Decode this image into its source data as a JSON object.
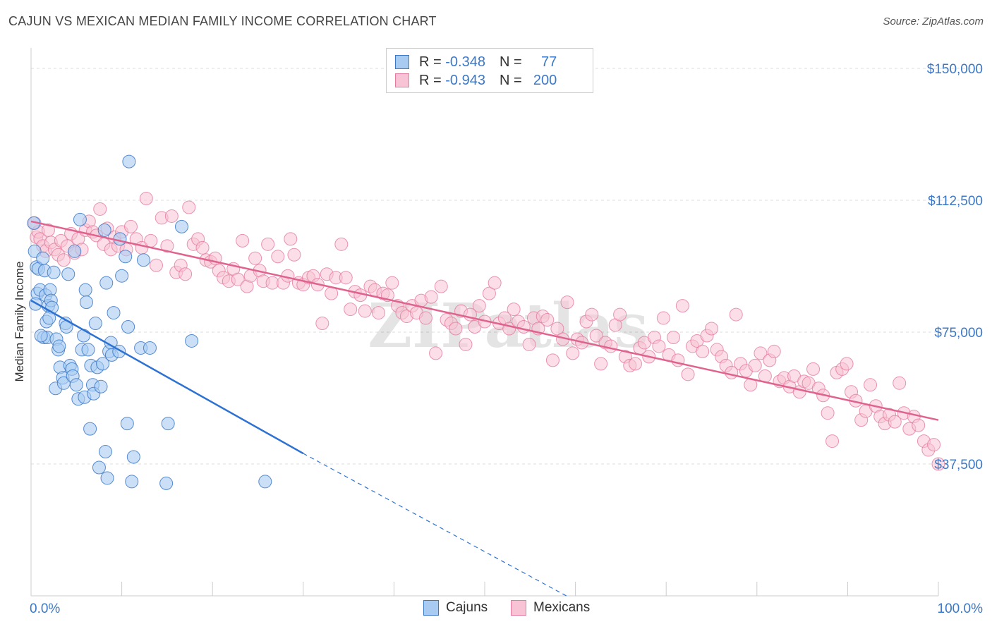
{
  "title": "CAJUN VS MEXICAN MEDIAN FAMILY INCOME CORRELATION CHART",
  "source": "Source: ZipAtlas.com",
  "watermark": "ZIPatlas",
  "colors": {
    "cajun_fill": "#a9cbf2",
    "cajun_stroke": "#3b78c8",
    "cajun_line": "#2d72d2",
    "mexican_fill": "#f8c3d4",
    "mexican_stroke": "#e57a9e",
    "mexican_line": "#e0628e",
    "grid": "#dddddd",
    "tick_label": "#3b78c8"
  },
  "legend": {
    "rows": [
      {
        "r_label": "R = ",
        "r_value": "-0.348",
        "n_label": "N = ",
        "n_value": "77"
      },
      {
        "r_label": "R = ",
        "r_value": "-0.943",
        "n_label": "N = ",
        "n_value": "200"
      }
    ]
  },
  "bottom_legend": [
    "Cajuns",
    "Mexicans"
  ],
  "chart_data": {
    "type": "scatter",
    "title": "CAJUN VS MEXICAN MEDIAN FAMILY INCOME CORRELATION CHART",
    "xlabel": "",
    "ylabel": "Median Family Income",
    "xlim": [
      0,
      100
    ],
    "ylim": [
      0,
      150000
    ],
    "x_tick_labels": [
      "0.0%",
      "100.0%"
    ],
    "y_ticks": [
      37500,
      75000,
      112500,
      150000
    ],
    "y_tick_labels": [
      "$37,500",
      "$75,000",
      "$112,500",
      "$150,000"
    ],
    "grid": true,
    "legend_position": "top-center",
    "series": [
      {
        "name": "Cajuns",
        "r": -0.348,
        "n": 77,
        "trend": {
          "x": [
            0,
            30
          ],
          "y": [
            84000,
            40500
          ],
          "dashed_to": [
            59,
            0
          ]
        },
        "points": [
          [
            0.3,
            106000
          ],
          [
            0.4,
            98000
          ],
          [
            0.6,
            93500
          ],
          [
            0.7,
            86000
          ],
          [
            0.8,
            93000
          ],
          [
            1.0,
            87000
          ],
          [
            1.3,
            96000
          ],
          [
            1.4,
            73500
          ],
          [
            1.5,
            92500
          ],
          [
            1.6,
            85500
          ],
          [
            1.7,
            78000
          ],
          [
            1.8,
            73500
          ],
          [
            1.9,
            82500
          ],
          [
            2.1,
            87000
          ],
          [
            2.2,
            84000
          ],
          [
            2.3,
            82000
          ],
          [
            2.5,
            92000
          ],
          [
            2.7,
            59000
          ],
          [
            2.8,
            73000
          ],
          [
            3.0,
            70000
          ],
          [
            3.1,
            71000
          ],
          [
            3.2,
            65000
          ],
          [
            3.5,
            62000
          ],
          [
            3.6,
            60500
          ],
          [
            3.8,
            77500
          ],
          [
            3.9,
            76500
          ],
          [
            4.1,
            91500
          ],
          [
            4.3,
            65500
          ],
          [
            4.5,
            64500
          ],
          [
            4.6,
            62500
          ],
          [
            4.8,
            98000
          ],
          [
            5.0,
            60000
          ],
          [
            5.2,
            56000
          ],
          [
            5.4,
            107000
          ],
          [
            5.6,
            70000
          ],
          [
            5.8,
            74000
          ],
          [
            5.9,
            56500
          ],
          [
            6.0,
            87000
          ],
          [
            6.1,
            83500
          ],
          [
            6.3,
            70000
          ],
          [
            6.5,
            47500
          ],
          [
            6.6,
            65500
          ],
          [
            6.8,
            60000
          ],
          [
            6.9,
            57500
          ],
          [
            7.1,
            77500
          ],
          [
            7.3,
            65000
          ],
          [
            7.5,
            36500
          ],
          [
            7.7,
            59500
          ],
          [
            7.9,
            66000
          ],
          [
            8.1,
            104000
          ],
          [
            8.2,
            41000
          ],
          [
            8.3,
            89000
          ],
          [
            8.4,
            33500
          ],
          [
            8.6,
            69500
          ],
          [
            8.8,
            72000
          ],
          [
            8.9,
            68500
          ],
          [
            9.1,
            80500
          ],
          [
            9.7,
            69500
          ],
          [
            9.8,
            101500
          ],
          [
            10.0,
            91000
          ],
          [
            10.4,
            96500
          ],
          [
            10.6,
            49000
          ],
          [
            10.7,
            76500
          ],
          [
            10.8,
            123500
          ],
          [
            11.1,
            32500
          ],
          [
            11.3,
            39500
          ],
          [
            12.1,
            70500
          ],
          [
            12.4,
            95500
          ],
          [
            13.1,
            70500
          ],
          [
            14.9,
            32000
          ],
          [
            15.1,
            49000
          ],
          [
            16.6,
            105000
          ],
          [
            17.7,
            72500
          ],
          [
            25.8,
            32500
          ],
          [
            0.5,
            83000
          ],
          [
            1.1,
            74000
          ],
          [
            2.0,
            79000
          ]
        ]
      },
      {
        "name": "Mexicans",
        "r": -0.943,
        "n": 200,
        "trend": {
          "x": [
            0,
            100
          ],
          "y": [
            106500,
            50000
          ]
        },
        "points": [
          [
            0.4,
            106000
          ],
          [
            0.6,
            102000
          ],
          [
            0.8,
            103500
          ],
          [
            1.0,
            101500
          ],
          [
            1.3,
            99500
          ],
          [
            1.6,
            98000
          ],
          [
            1.9,
            104000
          ],
          [
            2.2,
            100500
          ],
          [
            2.6,
            98500
          ],
          [
            3.0,
            97000
          ],
          [
            3.3,
            101000
          ],
          [
            3.6,
            95500
          ],
          [
            4.0,
            99500
          ],
          [
            4.4,
            103000
          ],
          [
            4.8,
            97500
          ],
          [
            5.2,
            101500
          ],
          [
            5.6,
            98500
          ],
          [
            6.0,
            104000
          ],
          [
            6.4,
            106500
          ],
          [
            6.8,
            103500
          ],
          [
            7.2,
            102500
          ],
          [
            7.6,
            110000
          ],
          [
            8.0,
            100000
          ],
          [
            8.4,
            104500
          ],
          [
            8.8,
            98500
          ],
          [
            9.2,
            102000
          ],
          [
            9.6,
            99500
          ],
          [
            10.0,
            103500
          ],
          [
            10.5,
            98500
          ],
          [
            11.0,
            105000
          ],
          [
            11.6,
            101500
          ],
          [
            12.2,
            99000
          ],
          [
            12.7,
            113000
          ],
          [
            13.2,
            101000
          ],
          [
            13.8,
            94000
          ],
          [
            14.4,
            107500
          ],
          [
            15.0,
            99500
          ],
          [
            15.5,
            108000
          ],
          [
            16.0,
            92000
          ],
          [
            16.5,
            94000
          ],
          [
            17.0,
            91500
          ],
          [
            17.4,
            110500
          ],
          [
            17.9,
            100000
          ],
          [
            18.4,
            101500
          ],
          [
            18.9,
            99000
          ],
          [
            19.3,
            95500
          ],
          [
            19.8,
            95000
          ],
          [
            20.3,
            96000
          ],
          [
            20.7,
            92500
          ],
          [
            21.2,
            90500
          ],
          [
            21.8,
            89500
          ],
          [
            22.3,
            93000
          ],
          [
            22.8,
            90000
          ],
          [
            23.3,
            101000
          ],
          [
            23.8,
            88000
          ],
          [
            24.2,
            91000
          ],
          [
            24.7,
            96000
          ],
          [
            25.2,
            92500
          ],
          [
            25.6,
            89500
          ],
          [
            26.1,
            100000
          ],
          [
            26.6,
            89000
          ],
          [
            27.2,
            96500
          ],
          [
            27.8,
            89000
          ],
          [
            28.3,
            91000
          ],
          [
            28.6,
            101500
          ],
          [
            29.0,
            97000
          ],
          [
            29.5,
            89000
          ],
          [
            30.0,
            88500
          ],
          [
            30.6,
            90500
          ],
          [
            31.1,
            91000
          ],
          [
            31.6,
            88500
          ],
          [
            32.1,
            77500
          ],
          [
            32.6,
            91500
          ],
          [
            33.1,
            86000
          ],
          [
            33.6,
            90500
          ],
          [
            34.2,
            100000
          ],
          [
            34.7,
            90500
          ],
          [
            35.2,
            81500
          ],
          [
            35.7,
            86500
          ],
          [
            36.3,
            85500
          ],
          [
            36.8,
            81000
          ],
          [
            37.4,
            88000
          ],
          [
            37.9,
            87000
          ],
          [
            38.3,
            80500
          ],
          [
            38.8,
            86000
          ],
          [
            39.3,
            85500
          ],
          [
            39.8,
            89000
          ],
          [
            40.4,
            82500
          ],
          [
            40.9,
            80500
          ],
          [
            41.4,
            79500
          ],
          [
            42.0,
            82500
          ],
          [
            42.5,
            80500
          ],
          [
            43.0,
            84000
          ],
          [
            43.5,
            79000
          ],
          [
            44.1,
            85000
          ],
          [
            44.6,
            69000
          ],
          [
            45.2,
            88000
          ],
          [
            45.8,
            78500
          ],
          [
            46.3,
            77500
          ],
          [
            46.8,
            76000
          ],
          [
            47.4,
            81000
          ],
          [
            47.9,
            71500
          ],
          [
            48.4,
            80000
          ],
          [
            48.9,
            76500
          ],
          [
            49.4,
            82500
          ],
          [
            50.0,
            78000
          ],
          [
            50.5,
            86000
          ],
          [
            51.1,
            89000
          ],
          [
            51.6,
            77500
          ],
          [
            52.2,
            79000
          ],
          [
            52.7,
            76000
          ],
          [
            53.2,
            81500
          ],
          [
            53.7,
            78000
          ],
          [
            54.3,
            76500
          ],
          [
            54.9,
            71500
          ],
          [
            55.4,
            79000
          ],
          [
            55.9,
            76000
          ],
          [
            56.4,
            79500
          ],
          [
            56.9,
            78500
          ],
          [
            57.5,
            67000
          ],
          [
            58.0,
            76000
          ],
          [
            58.6,
            73000
          ],
          [
            59.1,
            83500
          ],
          [
            59.7,
            69000
          ],
          [
            60.2,
            73000
          ],
          [
            60.7,
            72000
          ],
          [
            61.2,
            78000
          ],
          [
            61.8,
            80000
          ],
          [
            62.3,
            74000
          ],
          [
            62.8,
            66000
          ],
          [
            63.3,
            72000
          ],
          [
            63.9,
            71000
          ],
          [
            64.4,
            77000
          ],
          [
            64.9,
            80000
          ],
          [
            65.5,
            68000
          ],
          [
            66.0,
            65500
          ],
          [
            66.6,
            66000
          ],
          [
            67.1,
            70500
          ],
          [
            67.6,
            72000
          ],
          [
            68.1,
            68000
          ],
          [
            68.7,
            73500
          ],
          [
            69.2,
            71000
          ],
          [
            69.7,
            79000
          ],
          [
            70.3,
            68500
          ],
          [
            70.8,
            73500
          ],
          [
            71.3,
            67000
          ],
          [
            71.8,
            82500
          ],
          [
            72.4,
            63000
          ],
          [
            72.9,
            71000
          ],
          [
            73.4,
            72500
          ],
          [
            74.0,
            69500
          ],
          [
            74.5,
            74000
          ],
          [
            75.0,
            76000
          ],
          [
            75.6,
            70000
          ],
          [
            76.1,
            68000
          ],
          [
            76.6,
            65500
          ],
          [
            77.2,
            63500
          ],
          [
            77.7,
            80000
          ],
          [
            78.2,
            66000
          ],
          [
            78.8,
            64000
          ],
          [
            79.3,
            60000
          ],
          [
            79.8,
            65500
          ],
          [
            80.4,
            69000
          ],
          [
            80.9,
            62500
          ],
          [
            81.4,
            67000
          ],
          [
            81.9,
            69500
          ],
          [
            82.5,
            61000
          ],
          [
            83.0,
            62000
          ],
          [
            83.6,
            59500
          ],
          [
            84.1,
            62500
          ],
          [
            84.7,
            58000
          ],
          [
            85.2,
            61000
          ],
          [
            85.7,
            60500
          ],
          [
            86.2,
            64500
          ],
          [
            86.8,
            59000
          ],
          [
            87.3,
            57000
          ],
          [
            87.8,
            52000
          ],
          [
            88.3,
            44000
          ],
          [
            88.8,
            63500
          ],
          [
            89.4,
            64500
          ],
          [
            89.9,
            66000
          ],
          [
            90.4,
            58000
          ],
          [
            90.9,
            55500
          ],
          [
            91.5,
            50000
          ],
          [
            92.0,
            52500
          ],
          [
            92.5,
            60000
          ],
          [
            93.1,
            54000
          ],
          [
            93.6,
            51000
          ],
          [
            94.1,
            49000
          ],
          [
            94.6,
            51500
          ],
          [
            95.2,
            49500
          ],
          [
            95.7,
            60500
          ],
          [
            96.2,
            52000
          ],
          [
            96.8,
            47500
          ],
          [
            97.3,
            51000
          ],
          [
            97.8,
            48500
          ],
          [
            98.4,
            44000
          ],
          [
            98.9,
            41500
          ],
          [
            99.5,
            43000
          ],
          [
            100.0,
            37500
          ]
        ]
      }
    ]
  }
}
